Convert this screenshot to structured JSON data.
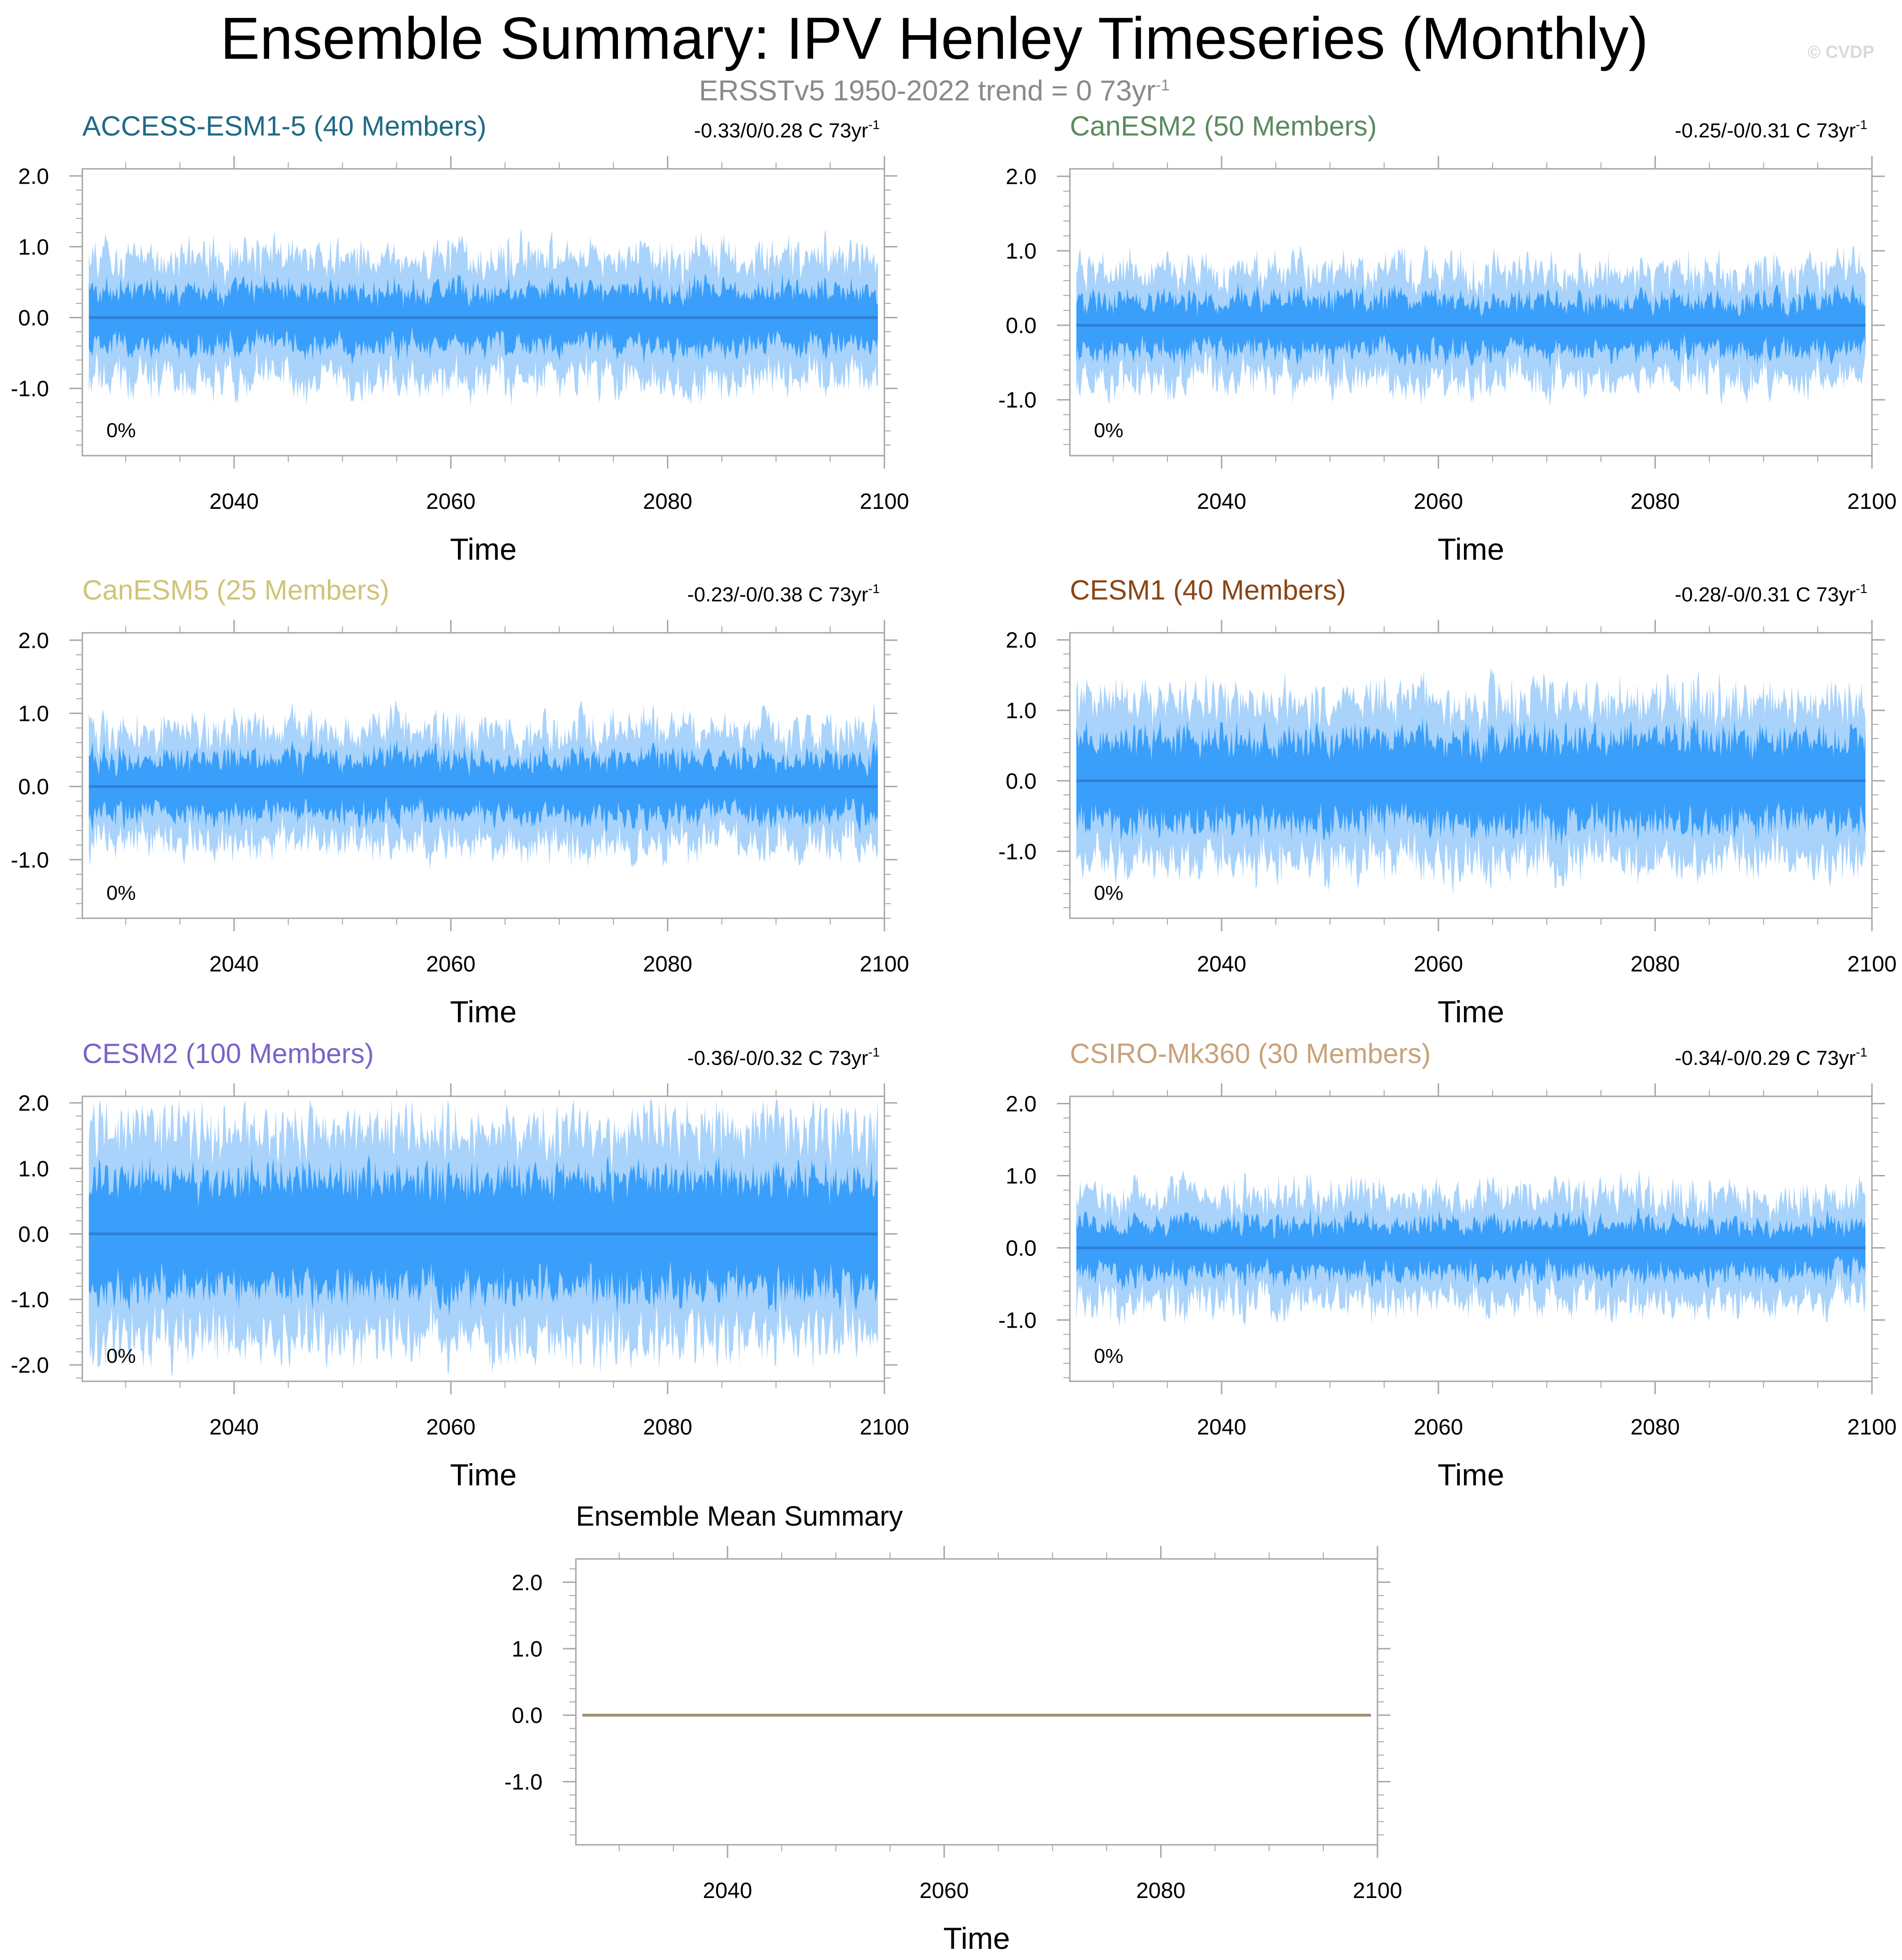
{
  "title": "Ensemble Summary: IPV Henley Timeseries (Monthly)",
  "subtitle": {
    "text": "ERSSTv5 1950-2022 trend = 0 73yr",
    "superscript": "-1"
  },
  "copyright": "© CVDP",
  "colors": {
    "outer_band": "#a9d3fb",
    "inner_band": "#3a9ffb",
    "ensemble_mean_line": "#2f7fd6",
    "summary_line": "#9c8f6e",
    "frame": "#a6a6a6"
  },
  "chart_data": [
    {
      "type": "area",
      "title": "ACCESS-ESM1-5 (40 Members)",
      "title_color": "#1f6a86",
      "trend_label": "-0.33/0/0.28 C 73yr",
      "trend_sup": "-1",
      "percent_label": "0%",
      "xlabel": "Time",
      "xlim": [
        2026,
        2100
      ],
      "xticks": [
        2040,
        2060,
        2080,
        2100
      ],
      "ylim": [
        -1.95,
        2.1
      ],
      "yticks": [
        2.0,
        1.0,
        0.0,
        -1.0
      ],
      "ytick_labels": [
        "2.0",
        "1.0",
        "0.0",
        "-1.0"
      ],
      "series": [
        {
          "band": "min-max",
          "outer_amplitude": 1.05
        },
        {
          "band": "interquartile",
          "inner_amplitude": 0.45
        },
        {
          "name": "ensemble mean",
          "values_constant": 0.0
        }
      ]
    },
    {
      "type": "area",
      "title": "CanESM2 (50 Members)",
      "title_color": "#5b8a5e",
      "trend_label": "-0.25/-0/0.31 C 73yr",
      "trend_sup": "-1",
      "percent_label": "0%",
      "xlabel": "Time",
      "xlim": [
        2026,
        2100
      ],
      "xticks": [
        2040,
        2060,
        2080,
        2100
      ],
      "ylim": [
        -1.75,
        2.1
      ],
      "yticks": [
        2.0,
        1.0,
        0.0,
        -1.0
      ],
      "ytick_labels": [
        "2.0",
        "1.0",
        "0.0",
        "-1.0"
      ],
      "series": [
        {
          "band": "min-max",
          "outer_amplitude": 0.9
        },
        {
          "band": "interquartile",
          "inner_amplitude": 0.4
        },
        {
          "name": "ensemble mean",
          "values_constant": 0.0
        }
      ]
    },
    {
      "type": "area",
      "title": "CanESM5 (25 Members)",
      "title_color": "#cfc476",
      "trend_label": "-0.23/-0/0.38 C 73yr",
      "trend_sup": "-1",
      "percent_label": "0%",
      "xlabel": "Time",
      "xlim": [
        2026,
        2100
      ],
      "xticks": [
        2040,
        2060,
        2080,
        2100
      ],
      "ylim": [
        -1.8,
        2.1
      ],
      "yticks": [
        2.0,
        1.0,
        0.0,
        -1.0
      ],
      "ytick_labels": [
        "2.0",
        "1.0",
        "0.0",
        "-1.0"
      ],
      "series": [
        {
          "band": "min-max",
          "outer_amplitude": 0.95
        },
        {
          "band": "interquartile",
          "inner_amplitude": 0.45
        },
        {
          "name": "ensemble mean",
          "values_constant": 0.0
        }
      ]
    },
    {
      "type": "area",
      "title": "CESM1 (40 Members)",
      "title_color": "#8b4513",
      "trend_label": "-0.28/-0/0.31 C 73yr",
      "trend_sup": "-1",
      "percent_label": "0%",
      "xlabel": "Time",
      "xlim": [
        2026,
        2100
      ],
      "xticks": [
        2040,
        2060,
        2080,
        2100
      ],
      "ylim": [
        -1.95,
        2.1
      ],
      "yticks": [
        2.0,
        1.0,
        0.0,
        -1.0
      ],
      "ytick_labels": [
        "2.0",
        "1.0",
        "0.0",
        "-1.0"
      ],
      "series": [
        {
          "band": "min-max",
          "outer_amplitude": 1.4
        },
        {
          "band": "interquartile",
          "inner_amplitude": 0.7
        },
        {
          "name": "ensemble mean",
          "values_constant": 0.0
        }
      ]
    },
    {
      "type": "area",
      "title": "CESM2 (100 Members)",
      "title_color": "#7b62c9",
      "trend_label": "-0.36/-0/0.32 C 73yr",
      "trend_sup": "-1",
      "percent_label": "0%",
      "xlabel": "Time",
      "xlim": [
        2026,
        2100
      ],
      "xticks": [
        2040,
        2060,
        2080,
        2100
      ],
      "ylim": [
        -2.25,
        2.1
      ],
      "yticks": [
        2.0,
        1.0,
        0.0,
        -1.0,
        -2.0
      ],
      "ytick_labels": [
        "2.0",
        "1.0",
        "0.0",
        "-1.0",
        "-2.0"
      ],
      "series": [
        {
          "band": "min-max",
          "outer_amplitude": 1.7
        },
        {
          "band": "interquartile",
          "inner_amplitude": 0.85
        },
        {
          "name": "ensemble mean",
          "values_constant": 0.0
        }
      ]
    },
    {
      "type": "area",
      "title": "CSIRO-Mk360 (30 Members)",
      "title_color": "#c9a27a",
      "trend_label": "-0.34/-0/0.29 C 73yr",
      "trend_sup": "-1",
      "percent_label": "0%",
      "xlabel": "Time",
      "xlim": [
        2026,
        2100
      ],
      "xticks": [
        2040,
        2060,
        2080,
        2100
      ],
      "ylim": [
        -1.85,
        2.1
      ],
      "yticks": [
        2.0,
        1.0,
        0.0,
        -1.0
      ],
      "ytick_labels": [
        "2.0",
        "1.0",
        "0.0",
        "-1.0"
      ],
      "series": [
        {
          "band": "min-max",
          "outer_amplitude": 0.9
        },
        {
          "band": "interquartile",
          "inner_amplitude": 0.4
        },
        {
          "name": "ensemble mean",
          "values_constant": 0.0
        }
      ]
    },
    {
      "type": "line",
      "title": "Ensemble Mean Summary",
      "title_color": "#000000",
      "trend_label": "",
      "percent_label": "",
      "xlabel": "Time",
      "xlim": [
        2026,
        2100
      ],
      "xticks": [
        2040,
        2060,
        2080,
        2100
      ],
      "ylim": [
        -1.95,
        2.35
      ],
      "yticks": [
        2.0,
        1.0,
        0.0,
        -1.0
      ],
      "ytick_labels": [
        "2.0",
        "1.0",
        "0.0",
        "-1.0"
      ],
      "series": [
        {
          "values_constant": 0.0
        }
      ]
    }
  ]
}
